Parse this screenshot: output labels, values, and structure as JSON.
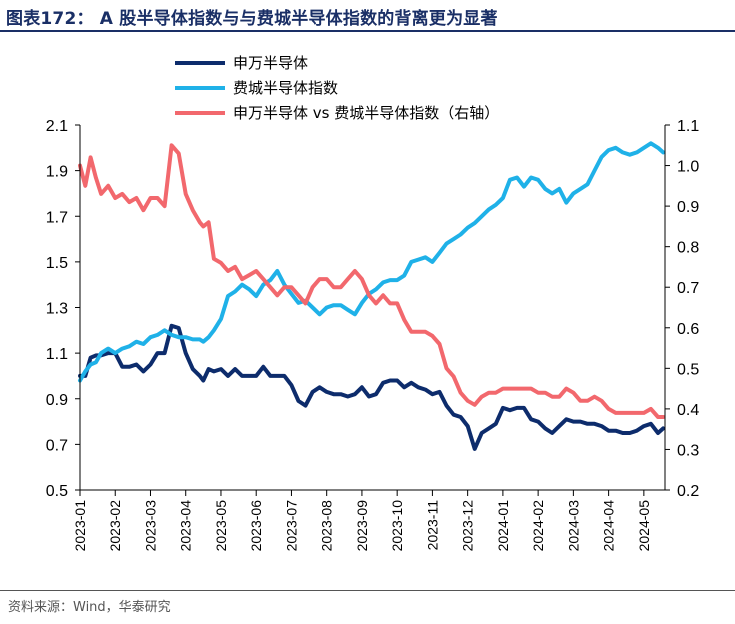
{
  "title": "图表172： A 股半导体指数与与费城半导体指数的背离更为显著",
  "source": "资料来源：Wind，华泰研究",
  "chart_data": {
    "type": "line",
    "xticks": [
      "2023-01",
      "2023-02",
      "2023-03",
      "2023-04",
      "2023-05",
      "2023-06",
      "2023-07",
      "2023-08",
      "2023-09",
      "2023-10",
      "2023-11",
      "2023-12",
      "2024-01",
      "2024-02",
      "2024-03",
      "2024-04",
      "2024-05"
    ],
    "xrange": [
      0,
      16.6
    ],
    "ylim_left": [
      0.5,
      2.1
    ],
    "yticks_left": [
      "0.5",
      "0.7",
      "0.9",
      "1.1",
      "1.3",
      "1.5",
      "1.7",
      "1.9",
      "2.1"
    ],
    "ylim_right": [
      0.2,
      1.1
    ],
    "yticks_right": [
      "0.2",
      "0.3",
      "0.4",
      "0.5",
      "0.6",
      "0.7",
      "0.8",
      "0.9",
      "1.0",
      "1.1"
    ],
    "legend_position": "top-center",
    "series": [
      {
        "name": "申万半导体",
        "axis": "left",
        "color": "#0d2c6c",
        "x": [
          0,
          0.15,
          0.3,
          0.45,
          0.6,
          0.8,
          1.0,
          1.2,
          1.4,
          1.6,
          1.8,
          2.0,
          2.2,
          2.4,
          2.6,
          2.8,
          3.0,
          3.2,
          3.4,
          3.5,
          3.65,
          3.8,
          4.0,
          4.2,
          4.4,
          4.6,
          4.8,
          5.0,
          5.2,
          5.4,
          5.6,
          5.8,
          6.0,
          6.2,
          6.4,
          6.6,
          6.8,
          7.0,
          7.2,
          7.4,
          7.6,
          7.8,
          8.0,
          8.2,
          8.4,
          8.6,
          8.8,
          9.0,
          9.2,
          9.4,
          9.6,
          9.8,
          10.0,
          10.2,
          10.4,
          10.6,
          10.8,
          11.0,
          11.2,
          11.4,
          11.6,
          11.8,
          12.0,
          12.2,
          12.4,
          12.6,
          12.8,
          13.0,
          13.2,
          13.4,
          13.6,
          13.8,
          14.0,
          14.2,
          14.4,
          14.6,
          14.8,
          15.0,
          15.2,
          15.4,
          15.6,
          15.8,
          16.0,
          16.2,
          16.4,
          16.55
        ],
        "y": [
          1.0,
          1.0,
          1.08,
          1.09,
          1.09,
          1.1,
          1.1,
          1.04,
          1.04,
          1.05,
          1.02,
          1.05,
          1.1,
          1.1,
          1.22,
          1.21,
          1.1,
          1.03,
          1.0,
          0.98,
          1.03,
          1.02,
          1.03,
          1.0,
          1.03,
          1.0,
          1.0,
          1.0,
          1.04,
          1.0,
          1.0,
          1.0,
          0.96,
          0.89,
          0.87,
          0.93,
          0.95,
          0.93,
          0.92,
          0.92,
          0.91,
          0.92,
          0.95,
          0.91,
          0.92,
          0.97,
          0.98,
          0.98,
          0.95,
          0.97,
          0.95,
          0.94,
          0.92,
          0.93,
          0.87,
          0.83,
          0.82,
          0.78,
          0.68,
          0.75,
          0.77,
          0.79,
          0.86,
          0.85,
          0.86,
          0.86,
          0.81,
          0.8,
          0.77,
          0.75,
          0.78,
          0.81,
          0.8,
          0.8,
          0.79,
          0.79,
          0.78,
          0.76,
          0.76,
          0.75,
          0.75,
          0.76,
          0.78,
          0.79,
          0.75,
          0.77
        ]
      },
      {
        "name": "费城半导体指数",
        "axis": "left",
        "color": "#1fb1e8",
        "x": [
          0,
          0.15,
          0.3,
          0.45,
          0.6,
          0.8,
          1.0,
          1.2,
          1.4,
          1.6,
          1.8,
          2.0,
          2.2,
          2.4,
          2.6,
          2.8,
          3.0,
          3.2,
          3.4,
          3.5,
          3.65,
          3.8,
          4.0,
          4.2,
          4.4,
          4.6,
          4.8,
          5.0,
          5.2,
          5.4,
          5.6,
          5.8,
          6.0,
          6.2,
          6.4,
          6.6,
          6.8,
          7.0,
          7.2,
          7.4,
          7.6,
          7.8,
          8.0,
          8.2,
          8.4,
          8.6,
          8.8,
          9.0,
          9.2,
          9.4,
          9.6,
          9.8,
          10.0,
          10.2,
          10.4,
          10.6,
          10.8,
          11.0,
          11.2,
          11.4,
          11.6,
          11.8,
          12.0,
          12.2,
          12.4,
          12.6,
          12.8,
          13.0,
          13.2,
          13.4,
          13.6,
          13.8,
          14.0,
          14.2,
          14.4,
          14.6,
          14.8,
          15.0,
          15.2,
          15.4,
          15.6,
          15.8,
          16.0,
          16.2,
          16.4,
          16.55
        ],
        "y": [
          0.98,
          1.02,
          1.05,
          1.06,
          1.1,
          1.12,
          1.1,
          1.12,
          1.13,
          1.15,
          1.14,
          1.17,
          1.18,
          1.2,
          1.18,
          1.17,
          1.17,
          1.16,
          1.16,
          1.15,
          1.17,
          1.2,
          1.25,
          1.35,
          1.37,
          1.4,
          1.38,
          1.35,
          1.4,
          1.42,
          1.46,
          1.4,
          1.36,
          1.32,
          1.33,
          1.3,
          1.27,
          1.3,
          1.31,
          1.31,
          1.29,
          1.27,
          1.32,
          1.36,
          1.38,
          1.41,
          1.42,
          1.42,
          1.44,
          1.5,
          1.51,
          1.52,
          1.5,
          1.54,
          1.58,
          1.6,
          1.62,
          1.65,
          1.67,
          1.7,
          1.73,
          1.75,
          1.78,
          1.86,
          1.87,
          1.83,
          1.87,
          1.86,
          1.82,
          1.8,
          1.82,
          1.76,
          1.8,
          1.82,
          1.84,
          1.9,
          1.96,
          1.99,
          2.0,
          1.98,
          1.97,
          1.98,
          2.0,
          2.02,
          2.0,
          1.98
        ]
      },
      {
        "name": "申万半导体 vs 费城半导体指数（右轴）",
        "axis": "right",
        "color": "#f2686d",
        "x": [
          0,
          0.15,
          0.3,
          0.45,
          0.6,
          0.8,
          1.0,
          1.2,
          1.4,
          1.6,
          1.8,
          2.0,
          2.2,
          2.4,
          2.6,
          2.8,
          3.0,
          3.2,
          3.4,
          3.5,
          3.65,
          3.8,
          4.0,
          4.2,
          4.4,
          4.6,
          4.8,
          5.0,
          5.2,
          5.4,
          5.6,
          5.8,
          6.0,
          6.2,
          6.4,
          6.6,
          6.8,
          7.0,
          7.2,
          7.4,
          7.6,
          7.8,
          8.0,
          8.2,
          8.4,
          8.6,
          8.8,
          9.0,
          9.2,
          9.4,
          9.6,
          9.8,
          10.0,
          10.2,
          10.4,
          10.6,
          10.8,
          11.0,
          11.2,
          11.4,
          11.6,
          11.8,
          12.0,
          12.2,
          12.4,
          12.6,
          12.8,
          13.0,
          13.2,
          13.4,
          13.6,
          13.8,
          14.0,
          14.2,
          14.4,
          14.6,
          14.8,
          15.0,
          15.2,
          15.4,
          15.6,
          15.8,
          16.0,
          16.2,
          16.4,
          16.55
        ],
        "y": [
          1.0,
          0.95,
          1.02,
          0.97,
          0.93,
          0.95,
          0.92,
          0.93,
          0.91,
          0.92,
          0.89,
          0.92,
          0.92,
          0.9,
          1.05,
          1.03,
          0.93,
          0.89,
          0.86,
          0.85,
          0.86,
          0.77,
          0.76,
          0.74,
          0.75,
          0.72,
          0.73,
          0.74,
          0.72,
          0.7,
          0.68,
          0.7,
          0.7,
          0.68,
          0.66,
          0.7,
          0.72,
          0.72,
          0.7,
          0.7,
          0.72,
          0.74,
          0.72,
          0.68,
          0.66,
          0.68,
          0.66,
          0.66,
          0.62,
          0.59,
          0.59,
          0.59,
          0.58,
          0.56,
          0.5,
          0.48,
          0.44,
          0.42,
          0.41,
          0.43,
          0.44,
          0.44,
          0.45,
          0.45,
          0.45,
          0.45,
          0.45,
          0.44,
          0.44,
          0.43,
          0.43,
          0.45,
          0.44,
          0.42,
          0.42,
          0.43,
          0.42,
          0.4,
          0.39,
          0.39,
          0.39,
          0.39,
          0.39,
          0.4,
          0.38,
          0.38
        ]
      }
    ]
  }
}
